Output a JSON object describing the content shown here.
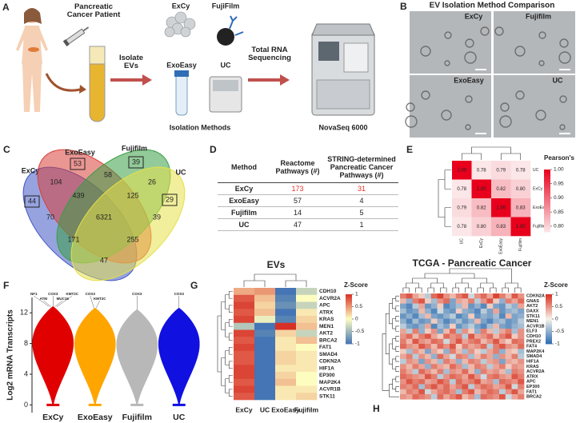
{
  "panel_a": {
    "letter": "A",
    "patient": "Pancreatic Cancer Patient",
    "isolate": "Isolate EVs",
    "methods": [
      "ExCy",
      "FujiFilm",
      "ExoEasy",
      "UC"
    ],
    "caption": "Isolation Methods",
    "sequencing": "Total RNA Sequencing",
    "sequencer": "NovaSeq 6000"
  },
  "panel_b": {
    "letter": "B",
    "title": "EV Isolation Method Comparison",
    "images": [
      "ExCy",
      "Fujifilm",
      "ExoEasy",
      "UC"
    ]
  },
  "venn": {
    "letter": "C",
    "sets": [
      {
        "name": "ExCy",
        "color": "#3f57c4"
      },
      {
        "name": "ExoEasy",
        "color": "#d8403a"
      },
      {
        "name": "Fujifilm",
        "color": "#3a9e45"
      },
      {
        "name": "UC",
        "color": "#e6e04a"
      }
    ],
    "regions": [
      53,
      39,
      44,
      29,
      104,
      58,
      26,
      439,
      125,
      70,
      6321,
      39,
      171,
      255,
      47
    ],
    "boxed": [
      true,
      true,
      true,
      true,
      false,
      false,
      false,
      false,
      false,
      false,
      false,
      false,
      false,
      false,
      false
    ]
  },
  "table": {
    "letter": "D",
    "header": [
      "Method",
      "Reactome Pathways (#)",
      "STRING-determined Pancreatic Cancer Pathways (#)"
    ],
    "rows": [
      [
        "ExCy",
        173,
        31
      ],
      [
        "ExoEasy",
        57,
        4
      ],
      [
        "Fujifilm",
        14,
        5
      ],
      [
        "UC",
        47,
        1
      ]
    ],
    "highlight_row": 0,
    "highlight_color": "#e8302a"
  },
  "chart_data": [
    {
      "type": "heatmap",
      "letter": "E",
      "rows": [
        "UC",
        "ExCy",
        "ExoEasy",
        "Fujifilm"
      ],
      "columns": [
        "UC",
        "ExCy",
        "ExoEasy",
        "Fujifilm"
      ],
      "values": [
        [
          1,
          0.78,
          0.79,
          0.78
        ],
        [
          0.78,
          1,
          0.82,
          0.8
        ],
        [
          0.79,
          0.82,
          1,
          0.83
        ],
        [
          0.78,
          0.8,
          0.83,
          1
        ]
      ],
      "value_labels": [
        [
          "1.00",
          "0.78",
          "0.79",
          "0.78"
        ],
        [
          "0.78",
          "1.00",
          "0.82",
          "0.80"
        ],
        [
          "0.79",
          "0.82",
          "1.00",
          "0.83"
        ],
        [
          "0.78",
          "0.80",
          "0.83",
          "1.00"
        ]
      ],
      "clim": [
        0.78,
        1
      ],
      "colors": [
        "#fbe6e8",
        "#e8001c"
      ],
      "colorbar_title": "Pearson's R",
      "colorbar_ticks": [
        {
          "value": 1,
          "label": "1.00"
        },
        {
          "value": 0.95,
          "label": "0.95"
        },
        {
          "value": 0.9,
          "label": "0.90"
        },
        {
          "value": 0.85,
          "label": "0.85"
        },
        {
          "value": 0.8,
          "label": "0.80"
        }
      ]
    },
    {
      "type": "violin",
      "letter": "F",
      "ylabel": "Log2 mRNA Transcripts",
      "categories": [
        "ExCy",
        "ExoEasy",
        "Fujifilm",
        "UC"
      ],
      "colors": [
        "#e00000",
        "#ffa500",
        "#b8b8b8",
        "#1010e0"
      ],
      "max": [
        12.8,
        12.6,
        12.4,
        12.6
      ],
      "min": [
        0,
        0,
        0,
        0
      ],
      "annotations": [
        [
          "NF1",
          "ATM",
          "COX3",
          "MUC16",
          "KMT2C"
        ],
        [
          "COX3",
          "KMT2C"
        ],
        [
          "COX3"
        ],
        [
          "COX3"
        ]
      ],
      "ylim": [
        -1,
        14
      ],
      "yticks": [
        0,
        4,
        8,
        12
      ]
    },
    {
      "type": "heatmap",
      "letter": "G",
      "title": "EVs",
      "rows": [
        "CDH10",
        "ACVR2A",
        "APC",
        "ATRX",
        "KRAS",
        "MEN1",
        "AKT2",
        "BRCA2",
        "FAT1",
        "SMAD4",
        "CDKN2A",
        "HIF1A",
        "EP300",
        "MAP2K4",
        "ACVR1B",
        "STK11"
      ],
      "columns": [
        "ExCy",
        "UC",
        "ExoEasy",
        "Fujifilm"
      ],
      "values": [
        [
          0.4,
          0.5,
          -1,
          -0.3
        ],
        [
          0.8,
          0.3,
          -0.9,
          0
        ],
        [
          0.9,
          0.2,
          -0.8,
          -0.3
        ],
        [
          0.8,
          0.3,
          -1,
          0.1
        ],
        [
          0.9,
          -0.1,
          -0.9,
          0.2
        ],
        [
          -0.4,
          -1,
          1,
          0.3
        ],
        [
          0.9,
          -0.9,
          0.2,
          -0.3
        ],
        [
          0.8,
          -1,
          0.1,
          0.3
        ],
        [
          0.9,
          -1,
          0.1,
          0
        ],
        [
          0.8,
          -1,
          0.2,
          0.1
        ],
        [
          0.8,
          -1,
          0.2,
          0.1
        ],
        [
          0.9,
          -1,
          0.1,
          0.1
        ],
        [
          0.9,
          -1,
          0.2,
          0
        ],
        [
          0.8,
          -1,
          0.3,
          0
        ],
        [
          0.9,
          -1,
          0.1,
          0.1
        ],
        [
          0.8,
          -1,
          0.1,
          0.2
        ]
      ],
      "clim": [
        -1,
        1
      ],
      "colors": [
        "#4575b4",
        "#fdfdc0",
        "#d73027"
      ],
      "label_color": "#c2189b",
      "colorbar_title": "Z-Score",
      "colorbar_ticks": [
        1,
        0.5,
        0,
        -0.5,
        -1
      ]
    },
    {
      "type": "heatmap",
      "letter": "H",
      "title": "TCGA - Pancreatic Cancer",
      "rows": [
        "CDKN2A",
        "GNAS",
        "AKT2",
        "DAXX",
        "STK11",
        "MEN1",
        "ACVR1B",
        "ELF3",
        "CDH10",
        "PREX2",
        "FAT4",
        "MAP2K4",
        "SMAD4",
        "HIF1A",
        "KRAS",
        "ACVR2A",
        "ATRX",
        "APC",
        "EP300",
        "FAT1",
        "BRCA2"
      ],
      "row_colors": [
        "#c2189b",
        "#111111",
        "#c2189b",
        "#111111",
        "#c2189b",
        "#c2189b",
        "#c2189b",
        "#111111",
        "#c2189b",
        "#111111",
        "#111111",
        "#c2189b",
        "#c2189b",
        "#c2189b",
        "#c2189b",
        "#c2189b",
        "#c2189b",
        "#c2189b",
        "#c2189b",
        "#c2189b",
        "#c2189b"
      ],
      "values": [
        [
          0.6,
          0.8,
          0.4,
          0.2,
          -0.3,
          0.7,
          0.9,
          0.5,
          0.3,
          0.6,
          0.8,
          -0.2,
          0.5,
          0.7,
          0.4,
          0.9,
          0.6,
          0.3,
          0.8,
          0.5
        ],
        [
          0.3,
          -0.5,
          0.6,
          0.8,
          0.2,
          -0.4,
          0.5,
          0.7,
          -0.6,
          0.4,
          0.3,
          0.6,
          -0.3,
          0.5,
          0.8,
          0.2,
          -0.5,
          0.6,
          0.4,
          0.7
        ],
        [
          -0.6,
          -0.8,
          -0.3,
          0.4,
          -0.7,
          -0.5,
          0.2,
          -0.8,
          -0.6,
          -0.4,
          0.3,
          -0.7,
          -0.5,
          -0.8,
          0.2,
          -0.6,
          -0.7,
          -0.3,
          -0.5,
          0.4
        ],
        [
          -0.4,
          -0.7,
          -0.6,
          0.3,
          -0.5,
          -0.8,
          -0.2,
          -0.6,
          -0.7,
          0.2,
          -0.5,
          -0.6,
          -0.8,
          -0.3,
          -0.6,
          0.4,
          -0.7,
          -0.5,
          -0.4,
          -0.6
        ],
        [
          -0.7,
          -0.5,
          -0.8,
          -0.4,
          0.3,
          -0.6,
          -0.7,
          -0.5,
          -0.3,
          -0.8,
          -0.6,
          0.2,
          -0.7,
          -0.5,
          -0.6,
          -0.4,
          -0.8,
          0.3,
          -0.6,
          -0.5
        ],
        [
          -0.5,
          -0.8,
          -0.4,
          -0.7,
          -0.6,
          0.2,
          -0.5,
          -0.8,
          -0.6,
          -0.4,
          -0.7,
          -0.5,
          0.3,
          -0.6,
          -0.8,
          -0.5,
          -0.4,
          -0.7,
          -0.6,
          -0.3
        ],
        [
          -0.3,
          -0.6,
          -0.7,
          -0.5,
          0.4,
          -0.8,
          -0.4,
          -0.6,
          0.2,
          -0.7,
          -0.5,
          -0.3,
          -0.6,
          -0.8,
          -0.4,
          0.3,
          -0.6,
          -0.7,
          -0.5,
          -0.4
        ],
        [
          0.4,
          -0.3,
          0.6,
          -0.5,
          0.2,
          0.5,
          -0.6,
          0.3,
          0.7,
          -0.4,
          0.5,
          0.2,
          -0.5,
          0.6,
          0.3,
          -0.3,
          0.4,
          0.6,
          -0.4,
          0.5
        ],
        [
          0.5,
          0.7,
          0.3,
          0.6,
          0.8,
          0.4,
          0.2,
          0.7,
          0.5,
          0.6,
          -0.3,
          0.8,
          0.4,
          0.5,
          0.7,
          0.3,
          0.6,
          0.8,
          0.2,
          0.5
        ],
        [
          0.6,
          0.3,
          0.8,
          0.5,
          0.4,
          0.7,
          0.6,
          -0.2,
          0.5,
          0.8,
          0.4,
          0.6,
          0.7,
          0.3,
          0.5,
          0.8,
          0.4,
          0.2,
          0.7,
          0.6
        ],
        [
          0.7,
          0.5,
          0.4,
          0.8,
          0.6,
          0.3,
          0.7,
          0.5,
          0.8,
          0.2,
          0.6,
          0.4,
          0.5,
          0.7,
          -0.3,
          0.6,
          0.8,
          0.5,
          0.4,
          0.7
        ],
        [
          0.2,
          -0.4,
          0.5,
          0.3,
          -0.6,
          0.4,
          0.2,
          -0.5,
          0.6,
          0.3,
          -0.4,
          0.5,
          0.2,
          -0.3,
          0.4,
          0.6,
          -0.5,
          0.3,
          0.2,
          -0.4
        ],
        [
          0.4,
          0.6,
          -0.3,
          0.5,
          0.3,
          -0.5,
          0.7,
          0.4,
          -0.2,
          0.6,
          0.5,
          -0.4,
          0.3,
          0.6,
          0.4,
          -0.5,
          0.5,
          0.3,
          0.6,
          -0.3
        ],
        [
          -0.3,
          0.5,
          0.4,
          -0.6,
          0.5,
          0.3,
          -0.4,
          0.6,
          0.4,
          -0.5,
          0.3,
          0.6,
          0.5,
          -0.3,
          0.4,
          0.5,
          -0.6,
          0.4,
          0.3,
          0.5
        ],
        [
          0.5,
          0.3,
          0.6,
          0.4,
          -0.5,
          0.6,
          0.4,
          0.3,
          0.7,
          0.5,
          -0.4,
          0.3,
          0.6,
          0.5,
          -0.3,
          0.4,
          0.6,
          0.2,
          0.5,
          0.4
        ],
        [
          0.6,
          0.4,
          -0.3,
          0.7,
          0.5,
          0.3,
          0.6,
          -0.4,
          0.5,
          0.4,
          0.7,
          0.3,
          -0.5,
          0.6,
          0.4,
          0.5,
          0.3,
          -0.4,
          0.6,
          0.5
        ],
        [
          0.7,
          0.6,
          0.5,
          0.4,
          0.8,
          0.6,
          -0.3,
          0.5,
          0.7,
          0.6,
          0.4,
          0.8,
          0.5,
          -0.2,
          0.6,
          0.7,
          0.5,
          0.4,
          0.8,
          0.6
        ],
        [
          0.5,
          0.8,
          0.6,
          0.7,
          0.4,
          0.5,
          0.8,
          0.6,
          -0.3,
          0.7,
          0.5,
          0.6,
          0.8,
          0.4,
          0.5,
          -0.4,
          0.7,
          0.6,
          0.5,
          0.8
        ],
        [
          0.6,
          0.5,
          0.7,
          -0.4,
          0.6,
          0.8,
          0.5,
          0.7,
          0.4,
          0.6,
          0.8,
          -0.3,
          0.5,
          0.7,
          0.6,
          0.4,
          0.5,
          0.8,
          -0.2,
          0.6
        ],
        [
          0.3,
          0.6,
          0.5,
          0.8,
          -0.2,
          0.4,
          0.6,
          0.7,
          0.5,
          -0.4,
          0.6,
          0.8,
          0.3,
          0.5,
          0.7,
          0.6,
          -0.3,
          0.5,
          0.8,
          0.4
        ],
        [
          0.5,
          0.4,
          0.7,
          0.6,
          0.5,
          -0.3,
          0.7,
          0.4,
          0.6,
          0.8,
          0.3,
          0.5,
          -0.4,
          0.7,
          0.6,
          0.5,
          0.8,
          -0.2,
          0.4,
          0.6
        ]
      ],
      "clim": [
        -1,
        1
      ],
      "colors": [
        "#2c6db2",
        "#f7f3e8",
        "#d7301f"
      ],
      "colorbar_title": "Z-Score",
      "colorbar_ticks": [
        1,
        0.5,
        0,
        -0.5,
        -1
      ]
    }
  ]
}
